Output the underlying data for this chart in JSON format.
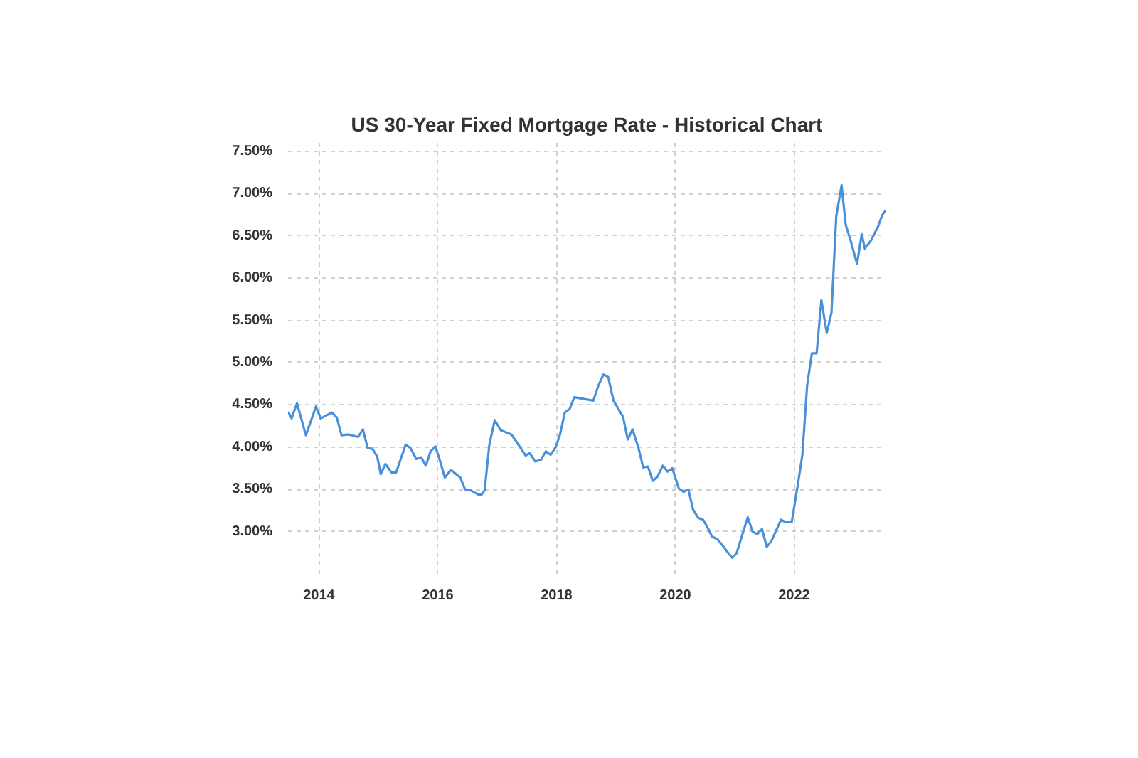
{
  "chart_data": {
    "type": "line",
    "title": "US 30-Year Fixed Mortgage Rate - Historical Chart",
    "x": [
      2013.48,
      2013.54,
      2013.63,
      2013.78,
      2013.95,
      2014.03,
      2014.22,
      2014.3,
      2014.38,
      2014.5,
      2014.66,
      2014.74,
      2014.82,
      2014.9,
      2014.98,
      2015.04,
      2015.12,
      2015.22,
      2015.3,
      2015.46,
      2015.54,
      2015.64,
      2015.72,
      2015.8,
      2015.88,
      2015.96,
      2016.02,
      2016.12,
      2016.22,
      2016.38,
      2016.46,
      2016.55,
      2016.68,
      2016.74,
      2016.79,
      2016.87,
      2016.96,
      2017.06,
      2017.24,
      2017.34,
      2017.48,
      2017.55,
      2017.64,
      2017.74,
      2017.82,
      2017.9,
      2017.98,
      2018.06,
      2018.14,
      2018.22,
      2018.3,
      2018.62,
      2018.7,
      2018.79,
      2018.87,
      2018.96,
      2019.12,
      2019.2,
      2019.28,
      2019.38,
      2019.46,
      2019.54,
      2019.62,
      2019.7,
      2019.79,
      2019.87,
      2019.95,
      2020.06,
      2020.14,
      2020.22,
      2020.3,
      2020.39,
      2020.47,
      2020.55,
      2020.62,
      2020.71,
      2020.79,
      2020.9,
      2020.96,
      2021.03,
      2021.22,
      2021.3,
      2021.38,
      2021.46,
      2021.54,
      2021.62,
      2021.78,
      2021.86,
      2021.96,
      2022.06,
      2022.14,
      2022.22,
      2022.3,
      2022.38,
      2022.46,
      2022.55,
      2022.63,
      2022.71,
      2022.8,
      2022.87,
      2022.95,
      2023.06,
      2023.14,
      2023.19,
      2023.3,
      2023.42,
      2023.48,
      2023.54
    ],
    "series": [
      {
        "color": "#4a90d9",
        "values": [
          4.42,
          4.34,
          4.52,
          4.14,
          4.48,
          4.34,
          4.41,
          4.35,
          4.14,
          4.15,
          4.12,
          4.21,
          3.99,
          3.98,
          3.89,
          3.68,
          3.8,
          3.7,
          3.7,
          4.03,
          3.99,
          3.86,
          3.88,
          3.78,
          3.95,
          4.01,
          3.88,
          3.64,
          3.73,
          3.64,
          3.5,
          3.49,
          3.44,
          3.44,
          3.49,
          4.03,
          4.32,
          4.2,
          4.15,
          4.05,
          3.9,
          3.93,
          3.83,
          3.85,
          3.95,
          3.91,
          3.99,
          4.15,
          4.41,
          4.45,
          4.59,
          4.55,
          4.72,
          4.86,
          4.83,
          4.55,
          4.36,
          4.09,
          4.21,
          3.99,
          3.76,
          3.77,
          3.6,
          3.65,
          3.78,
          3.71,
          3.75,
          3.51,
          3.47,
          3.5,
          3.26,
          3.16,
          3.14,
          3.04,
          2.94,
          2.91,
          2.84,
          2.74,
          2.69,
          2.74,
          3.17,
          3.0,
          2.97,
          3.03,
          2.82,
          2.89,
          3.14,
          3.11,
          3.11,
          3.54,
          3.91,
          4.73,
          5.11,
          5.11,
          5.74,
          5.35,
          5.59,
          6.73,
          7.1,
          6.63,
          6.45,
          6.17,
          6.52,
          6.35,
          6.45,
          6.62,
          6.74,
          6.8
        ]
      }
    ],
    "xlim": [
      2013.48,
      2023.54
    ],
    "ylim": [
      2.5,
      7.6
    ],
    "xticks": [
      2014,
      2016,
      2018,
      2020,
      2022
    ],
    "yticks": [
      {
        "value": 3.0,
        "label": "3.00%"
      },
      {
        "value": 3.5,
        "label": "3.50%"
      },
      {
        "value": 4.0,
        "label": "4.00%"
      },
      {
        "value": 4.5,
        "label": "4.50%"
      },
      {
        "value": 5.0,
        "label": "5.00%"
      },
      {
        "value": 5.5,
        "label": "5.50%"
      },
      {
        "value": 6.0,
        "label": "6.00%"
      },
      {
        "value": 6.5,
        "label": "6.50%"
      },
      {
        "value": 7.0,
        "label": "7.00%"
      },
      {
        "value": 7.5,
        "label": "7.50%"
      }
    ],
    "grid": true,
    "marker": "none",
    "line_style": "solid"
  }
}
